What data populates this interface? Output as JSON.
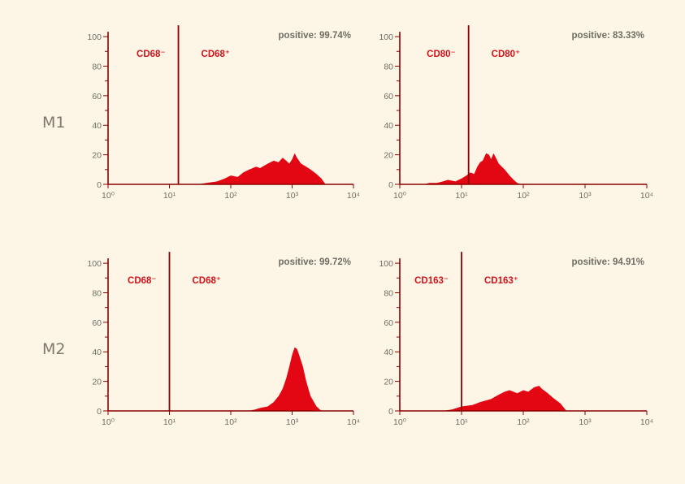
{
  "figure": {
    "row_labels": [
      "M1",
      "M2"
    ],
    "colors": {
      "histogram": "#e30613",
      "axis": "#8b0000",
      "gate_line": "#8b0000",
      "label_red": "#d0121a",
      "text_gray": "#6f6d63",
      "background": "#fdf6e7"
    }
  },
  "chart_data": [
    {
      "type": "area",
      "row": "M1",
      "col": 1,
      "negative_label": "CD68⁻",
      "positive_label": "CD68⁺",
      "positive_text": "positive: 99.74%",
      "gate_x": 14,
      "x_scale": "log",
      "xlim": [
        1,
        10000
      ],
      "x_tick_labels": [
        "10⁰",
        "10¹",
        "10²",
        "10³",
        "10⁴"
      ],
      "ylim": [
        0,
        105
      ],
      "y_tick_labels": [
        "0",
        "20",
        "40",
        "60",
        "80",
        "100"
      ],
      "x": [
        1,
        30,
        40,
        60,
        80,
        100,
        130,
        160,
        200,
        260,
        300,
        400,
        500,
        600,
        700,
        800,
        900,
        1000,
        1100,
        1200,
        1400,
        1700,
        2000,
        2500,
        3000,
        3500,
        10000
      ],
      "y": [
        0,
        0,
        1,
        2,
        4,
        6,
        5,
        8,
        10,
        12,
        11,
        14,
        16,
        15,
        18,
        16,
        14,
        17,
        21,
        18,
        14,
        12,
        10,
        7,
        4,
        0,
        0
      ]
    },
    {
      "type": "area",
      "row": "M1",
      "col": 2,
      "negative_label": "CD80⁻",
      "positive_label": "CD80⁺",
      "positive_text": "positive: 83.33%",
      "gate_x": 13,
      "x_scale": "log",
      "xlim": [
        1,
        10000
      ],
      "x_tick_labels": [
        "10⁰",
        "10¹",
        "10²",
        "10³",
        "10⁴"
      ],
      "ylim": [
        0,
        105
      ],
      "y_tick_labels": [
        "0",
        "20",
        "40",
        "60",
        "80",
        "100"
      ],
      "x": [
        1,
        2.5,
        3,
        4,
        5,
        6,
        8,
        10,
        12,
        14,
        16,
        18,
        20,
        22,
        25,
        28,
        30,
        33,
        36,
        40,
        45,
        50,
        60,
        70,
        80,
        90,
        10000
      ],
      "y": [
        0,
        0,
        1,
        1,
        2,
        3,
        2,
        4,
        6,
        8,
        7,
        12,
        15,
        16,
        21,
        20,
        17,
        21,
        18,
        14,
        12,
        10,
        6,
        3,
        1,
        0,
        0
      ]
    },
    {
      "type": "area",
      "row": "M2",
      "col": 1,
      "negative_label": "CD68⁻",
      "positive_label": "CD68⁺",
      "positive_text": "positive: 99.72%",
      "gate_x": 10,
      "x_scale": "log",
      "xlim": [
        1,
        10000
      ],
      "x_tick_labels": [
        "10⁰",
        "10¹",
        "10²",
        "10³",
        "10⁴"
      ],
      "ylim": [
        0,
        105
      ],
      "y_tick_labels": [
        "0",
        "20",
        "40",
        "60",
        "80",
        "100"
      ],
      "x": [
        1,
        200,
        250,
        300,
        400,
        500,
        600,
        700,
        800,
        900,
        1000,
        1100,
        1200,
        1300,
        1500,
        1700,
        2000,
        2500,
        3000,
        10000
      ],
      "y": [
        0,
        0,
        1,
        2,
        3,
        6,
        10,
        15,
        22,
        30,
        38,
        43,
        42,
        38,
        30,
        20,
        10,
        3,
        0,
        0
      ]
    },
    {
      "type": "area",
      "row": "M2",
      "col": 2,
      "negative_label": "CD163⁻",
      "positive_label": "CD163⁺",
      "positive_text": "positive: 94.91%",
      "gate_x": 10,
      "x_scale": "log",
      "xlim": [
        1,
        10000
      ],
      "x_tick_labels": [
        "10⁰",
        "10¹",
        "10²",
        "10³",
        "10⁴"
      ],
      "ylim": [
        0,
        105
      ],
      "y_tick_labels": [
        "0",
        "20",
        "40",
        "60",
        "80",
        "100"
      ],
      "x": [
        1,
        5,
        7,
        10,
        15,
        20,
        30,
        40,
        50,
        60,
        80,
        100,
        120,
        150,
        180,
        200,
        250,
        300,
        400,
        500,
        10000
      ],
      "y": [
        0,
        0,
        1,
        3,
        4,
        6,
        8,
        11,
        13,
        14,
        12,
        14,
        13,
        16,
        17,
        15,
        12,
        9,
        5,
        0,
        0
      ]
    }
  ]
}
